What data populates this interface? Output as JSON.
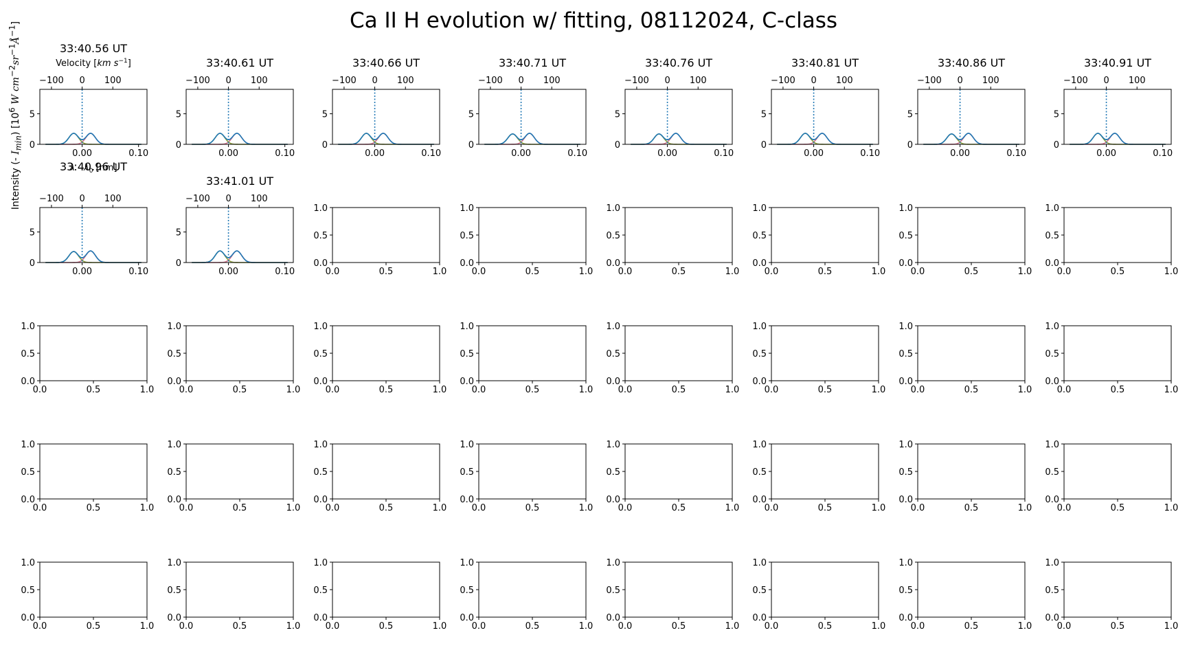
{
  "figure": {
    "title": "Ca II H evolution w/ fitting, 08112024, C-class",
    "ylabel": "Intensity (- I_min) [10^6 W cm^-2 sr^-1 Å^-1]",
    "velocity_label": "Velocity [km s^-1]",
    "wavelength_label": "λ - λ0 [nm]"
  },
  "chart_data": {
    "type": "line",
    "layout": {
      "rows": 5,
      "cols": 8
    },
    "x_axis": {
      "xlim": [
        -0.075,
        0.115
      ],
      "ticks": [
        0.0,
        0.1
      ],
      "tick_labels": [
        "0.00",
        "0.10"
      ]
    },
    "velocity_axis": {
      "ticks": [
        -100,
        0,
        100
      ],
      "tick_labels": [
        "−100",
        "0",
        "100"
      ]
    },
    "y_axis": {
      "ylim": [
        0,
        9
      ],
      "ticks": [
        0,
        5
      ],
      "tick_labels": [
        "0",
        "5"
      ]
    },
    "reference_line": {
      "x": 0.0,
      "style": "dotted",
      "color": "#1f77b4"
    },
    "empty_axes": {
      "xlim": [
        0,
        1
      ],
      "ylim": [
        0,
        1
      ],
      "x_tick_labels": [
        "0.0",
        "0.5",
        "1.0"
      ],
      "y_tick_labels": [
        "0.0",
        "0.5",
        "1.0"
      ]
    },
    "panels": [
      {
        "title": "33:40.56 UT",
        "blue_peak": -0.015,
        "red_peak": 0.015,
        "amp_blue": 1.8,
        "amp_red": 1.8,
        "width": 0.0085
      },
      {
        "title": "33:40.61 UT",
        "blue_peak": -0.015,
        "red_peak": 0.015,
        "amp_blue": 1.8,
        "amp_red": 1.8,
        "width": 0.0085
      },
      {
        "title": "33:40.66 UT",
        "blue_peak": -0.015,
        "red_peak": 0.015,
        "amp_blue": 1.8,
        "amp_red": 1.8,
        "width": 0.0085
      },
      {
        "title": "33:40.71 UT",
        "blue_peak": -0.015,
        "red_peak": 0.015,
        "amp_blue": 1.7,
        "amp_red": 1.8,
        "width": 0.0085
      },
      {
        "title": "33:40.76 UT",
        "blue_peak": -0.015,
        "red_peak": 0.015,
        "amp_blue": 1.7,
        "amp_red": 1.8,
        "width": 0.0085
      },
      {
        "title": "33:40.81 UT",
        "blue_peak": -0.015,
        "red_peak": 0.015,
        "amp_blue": 1.8,
        "amp_red": 1.8,
        "width": 0.0085
      },
      {
        "title": "33:40.86 UT",
        "blue_peak": -0.015,
        "red_peak": 0.015,
        "amp_blue": 1.7,
        "amp_red": 1.8,
        "width": 0.0085
      },
      {
        "title": "33:40.91 UT",
        "blue_peak": -0.015,
        "red_peak": 0.015,
        "amp_blue": 1.8,
        "amp_red": 1.8,
        "width": 0.0085
      },
      {
        "title": "33:40.96 UT",
        "blue_peak": -0.015,
        "red_peak": 0.015,
        "amp_blue": 1.8,
        "amp_red": 1.9,
        "width": 0.0085
      },
      {
        "title": "33:41.01 UT",
        "blue_peak": -0.015,
        "red_peak": 0.015,
        "amp_blue": 1.9,
        "amp_red": 1.9,
        "width": 0.0085
      }
    ],
    "series_colors": {
      "total_fit": "#1f77b4",
      "blue_component": "#8c9e3b",
      "red_component": "#d0708a"
    }
  }
}
